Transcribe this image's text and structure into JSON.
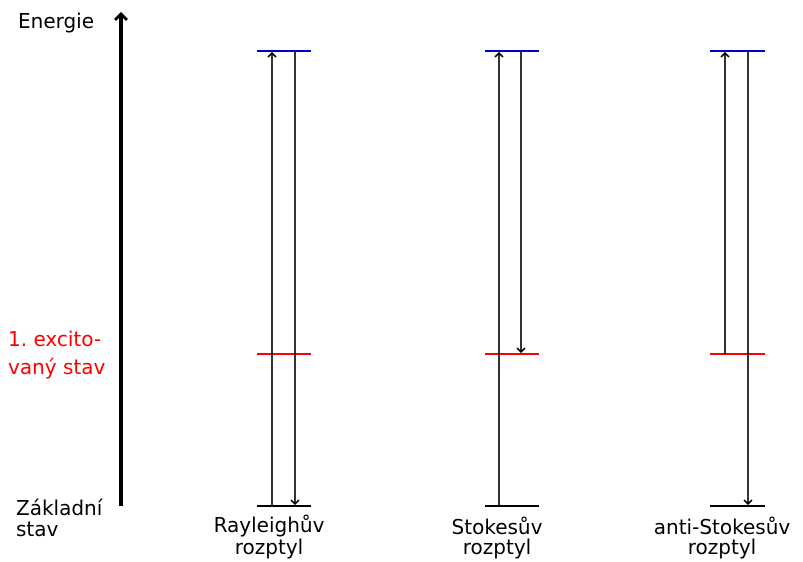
{
  "axis": {
    "label": "Energie"
  },
  "levels": {
    "ground": {
      "label_line1": "Základní",
      "label_line2": "stav",
      "color": "#000000"
    },
    "excited": {
      "label_line1": "1. excito-",
      "label_line2": "vaný stav",
      "color": "#ff0000"
    },
    "virtual": {
      "color": "#0000cc"
    }
  },
  "processes": [
    {
      "name_line1": "Rayleighův",
      "name_line2": "rozptyl"
    },
    {
      "name_line1": "Stokesův",
      "name_line2": "rozptyl"
    },
    {
      "name_line1": "anti-Stokesův",
      "name_line2": "rozptyl"
    }
  ]
}
